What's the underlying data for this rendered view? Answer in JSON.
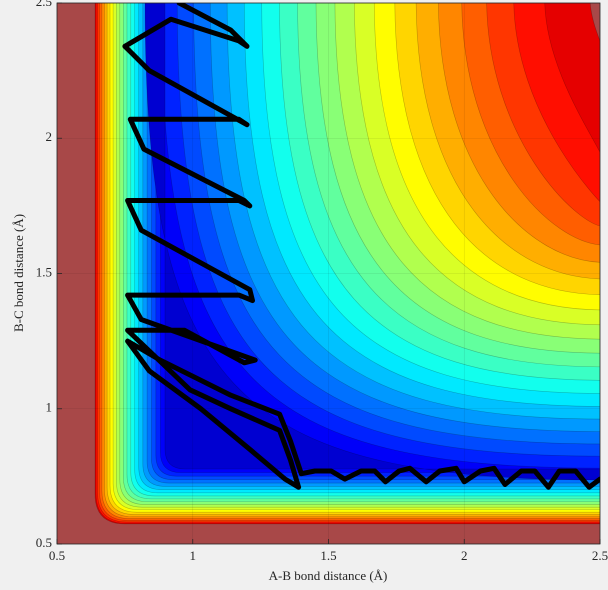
{
  "chart_data": {
    "type": "contour",
    "xlabel": "A-B bond distance (Å)",
    "ylabel": "B-C bond distance (Å)",
    "xlim": [
      0.5,
      2.5
    ],
    "ylim": [
      0.5,
      2.5
    ],
    "xticks": [
      0.5,
      1,
      1.5,
      2,
      2.5
    ],
    "yticks": [
      0.5,
      1,
      1.5,
      2,
      2.5
    ],
    "grid": true,
    "series": [
      {
        "color": "#000000",
        "x": [
          0.95,
          1.14,
          1.2,
          1.17,
          0.92,
          0.75,
          0.84,
          1.2,
          1.17,
          0.77,
          0.82,
          1.19,
          1.21,
          1.17,
          0.76,
          0.81,
          1.21,
          1.22,
          1.17,
          0.76,
          0.81,
          1.23,
          1.19,
          0.97,
          0.76,
          0.99,
          1.14,
          1.32,
          1.36,
          1.39,
          1.34,
          1.21,
          1.03,
          0.84,
          0.76,
          0.88,
          1.14,
          1.32,
          1.36,
          1.4,
          1.45,
          1.51,
          1.56,
          1.62,
          1.67,
          1.71,
          1.76,
          1.8,
          1.86,
          1.91,
          1.97,
          2.0,
          2.06,
          2.11,
          2.15,
          2.21,
          2.26,
          2.31,
          2.35,
          2.41,
          2.46,
          2.5
        ],
        "values": [
          2.5,
          2.4,
          2.34,
          2.36,
          2.44,
          2.34,
          2.25,
          2.05,
          2.07,
          2.07,
          1.96,
          1.77,
          1.75,
          1.77,
          1.77,
          1.66,
          1.44,
          1.4,
          1.42,
          1.42,
          1.33,
          1.18,
          1.17,
          1.29,
          1.29,
          1.07,
          1.0,
          0.92,
          0.81,
          0.71,
          0.74,
          0.85,
          1.0,
          1.14,
          1.25,
          1.18,
          1.05,
          0.98,
          0.88,
          0.76,
          0.77,
          0.77,
          0.74,
          0.77,
          0.77,
          0.73,
          0.77,
          0.78,
          0.73,
          0.77,
          0.78,
          0.73,
          0.77,
          0.78,
          0.72,
          0.77,
          0.77,
          0.71,
          0.77,
          0.77,
          0.71,
          0.74
        ]
      }
    ]
  }
}
